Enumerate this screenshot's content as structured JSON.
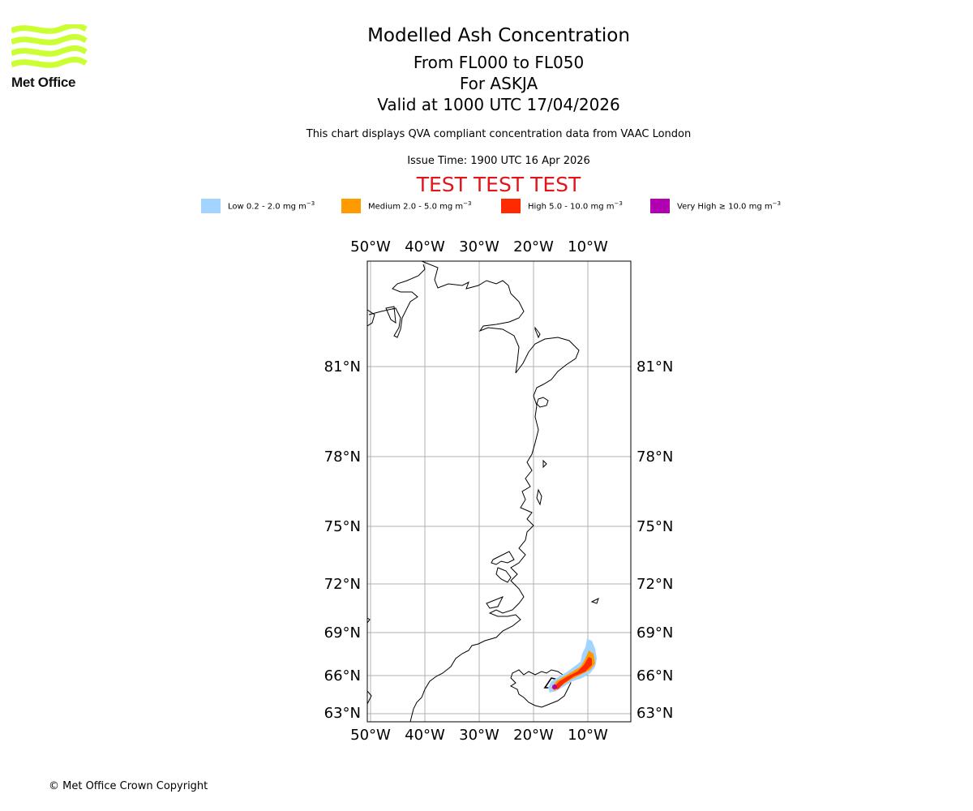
{
  "logo": {
    "text": "Met Office",
    "color": "#ccff33"
  },
  "header": {
    "title": "Modelled Ash Concentration",
    "levels": "From FL000 to FL050",
    "volcano": "For ASKJA",
    "valid": "Valid at 1000 UTC 17/04/2026",
    "description": "This chart displays QVA compliant concentration data from VAAC London",
    "issue_time": "Issue Time: 1900 UTC 16 Apr 2026",
    "test_banner": "TEST TEST TEST"
  },
  "legend": [
    {
      "label": "Low 0.2 - 2.0 mg m",
      "color": "#a3d3ff"
    },
    {
      "label": "Medium 2.0 - 5.0 mg m",
      "color": "#ff9a00"
    },
    {
      "label": "High 5.0 - 10.0 mg m",
      "color": "#ff2a00"
    },
    {
      "label": "Very High ≥ 10.0 mg m",
      "color": "#b000b0"
    }
  ],
  "legend_unit_exponent": "−3",
  "map": {
    "lon_ticks": [
      "50°W",
      "40°W",
      "30°W",
      "20°W",
      "10°W"
    ],
    "lat_ticks": [
      "81°N",
      "78°N",
      "75°N",
      "72°N",
      "69°N",
      "66°N",
      "63°N"
    ]
  },
  "footer": {
    "copyright": "© Met Office Crown Copyright"
  }
}
